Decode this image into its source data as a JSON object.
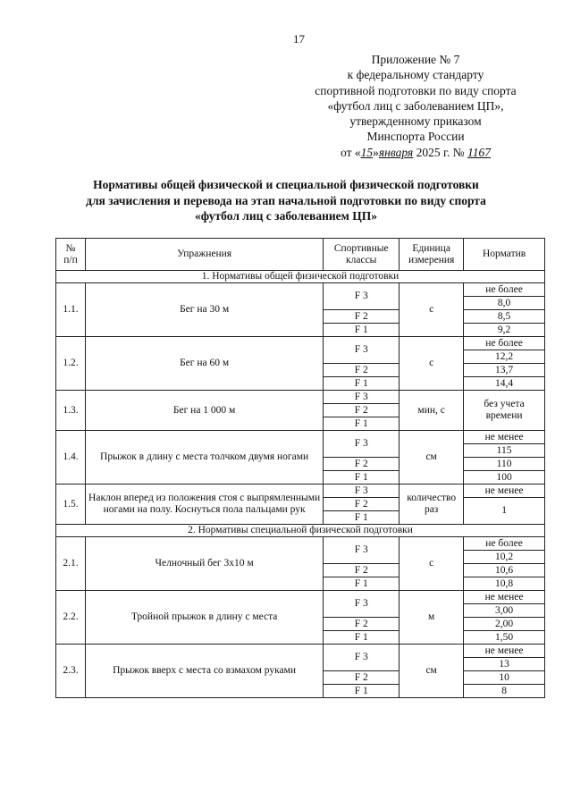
{
  "page_number": "17",
  "appendix": [
    "Приложение № 7",
    "к федеральному стандарту",
    "спортивной подготовки по виду спорта",
    "«футбол лиц с заболеванием ЦП»,",
    "утвержденному приказом",
    "Минспорта России"
  ],
  "order_line": {
    "prefix": "от «",
    "day": "15",
    "mid": "»",
    "month": "января",
    "year": "2025 г. №",
    "number": "1167"
  },
  "title": [
    "Нормативы общей физической и специальной физической подготовки",
    "для зачисления и перевода на этап начальной подготовки по виду спорта",
    "«футбол лиц с заболеванием ЦП»"
  ],
  "table": {
    "headers": [
      "№\nп/п",
      "Упражнения",
      "Спортивные классы",
      "Единица измерения",
      "Норматив"
    ],
    "sections": [
      {
        "title": "1.   Нормативы общей физической подготовки",
        "items": [
          {
            "num": "1.1.",
            "name": "Бег на 30 м",
            "unit": "с",
            "qualifier": "не более",
            "values": [
              "8,0",
              "8,5",
              "9,2"
            ]
          },
          {
            "num": "1.2.",
            "name": "Бег на 60 м",
            "unit": "с",
            "qualifier": "не более",
            "values": [
              "12,2",
              "13,7",
              "14,4"
            ]
          },
          {
            "num": "1.3.",
            "name": "Бег на 1 000 м",
            "unit": "мин, с",
            "single": "без учета времени"
          },
          {
            "num": "1.4.",
            "name": "Прыжок в длину с места толчком двумя ногами",
            "unit": "см",
            "qualifier": "не менее",
            "values": [
              "115",
              "110",
              "100"
            ]
          },
          {
            "num": "1.5.",
            "name": "Наклон вперед из положения стоя с выпрямленными ногами на полу. Коснуться пола пальцами рук",
            "unit": "количество раз",
            "qualifier": "не менее",
            "merged": "1"
          }
        ]
      },
      {
        "title": "2.   Нормативы специальной физической подготовки",
        "items": [
          {
            "num": "2.1.",
            "name": "Челночный бег 3x10 м",
            "unit": "с",
            "qualifier": "не более",
            "values": [
              "10,2",
              "10,6",
              "10,8"
            ]
          },
          {
            "num": "2.2.",
            "name": "Тройной прыжок в длину с места",
            "unit": "м",
            "qualifier": "не менее",
            "values": [
              "3,00",
              "2,00",
              "1,50"
            ]
          },
          {
            "num": "2.3.",
            "name": "Прыжок вверх с места со взмахом руками",
            "unit": "см",
            "qualifier": "не менее",
            "values": [
              "13",
              "10",
              "8"
            ]
          }
        ]
      }
    ],
    "classes": [
      "F 3",
      "F 2",
      "F 1"
    ]
  }
}
